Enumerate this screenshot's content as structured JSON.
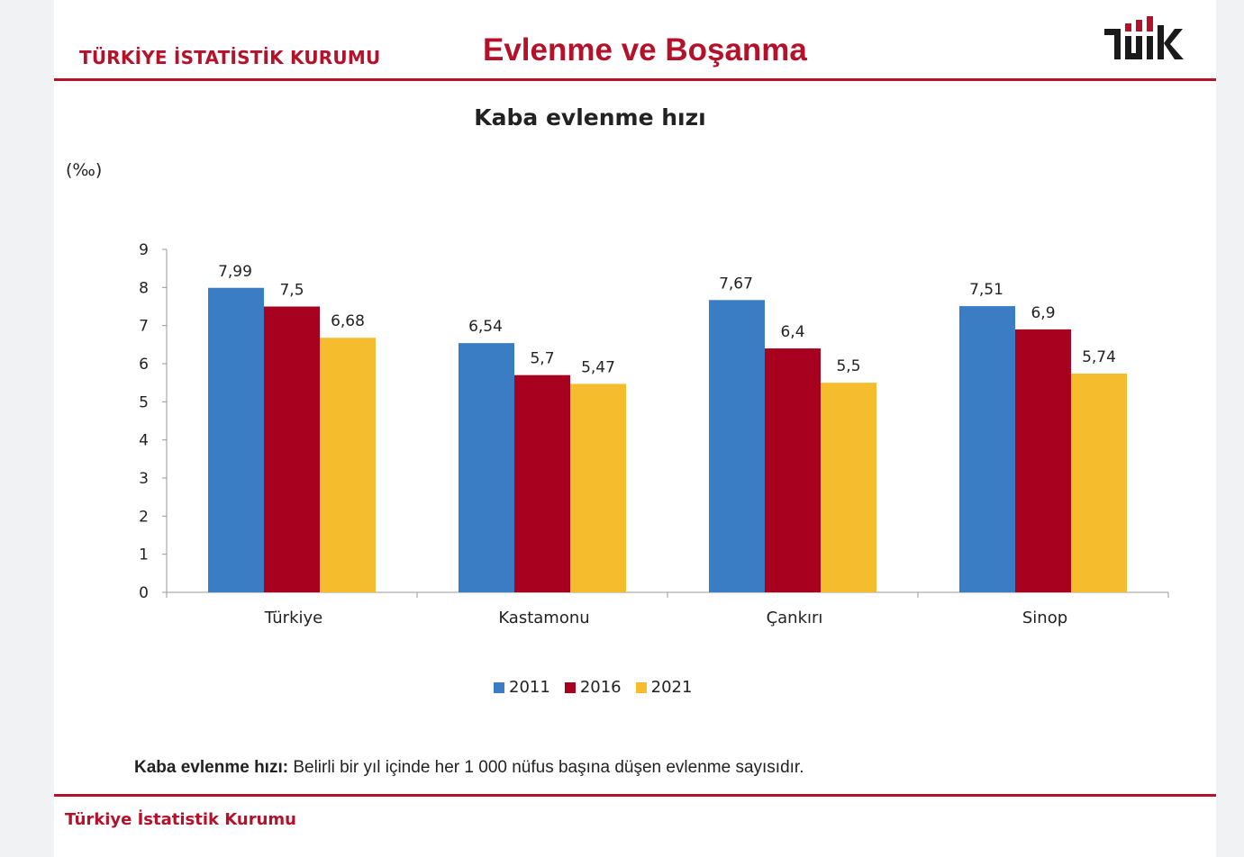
{
  "header": {
    "org_name": "TÜRKİYE İSTATİSTİK KURUMU",
    "title": "Evlenme ve Boşanma",
    "logo_text": "TÜİK"
  },
  "footer": {
    "org_name": "Türkiye İstatistik Kurumu"
  },
  "definition": {
    "term": "Kaba evlenme hızı:",
    "text": " Belirli bir yıl içinde her 1 000 nüfus başına düşen evlenme sayısıdır."
  },
  "colors": {
    "brand": "#b3122a",
    "series_2011": "#3b7dc4",
    "series_2016": "#a8001f",
    "series_2021": "#f5bd2e"
  },
  "chart_data": {
    "type": "bar",
    "title": "Kaba evlenme hızı",
    "ylabel": "(‰)",
    "xlabel": "",
    "ylim": [
      0,
      9
    ],
    "yticks": [
      "0",
      "1",
      "2",
      "3",
      "4",
      "5",
      "6",
      "7",
      "8",
      "9"
    ],
    "categories": [
      "Türkiye",
      "Kastamonu",
      "Çankırı",
      "Sinop"
    ],
    "series": [
      {
        "name": "2011",
        "values": [
          7.99,
          6.54,
          7.67,
          7.51
        ],
        "labels": [
          "7,99",
          "6,54",
          "7,67",
          "7,51"
        ],
        "color": "#3b7dc4"
      },
      {
        "name": "2016",
        "values": [
          7.5,
          5.7,
          6.4,
          6.9
        ],
        "labels": [
          "7,5",
          "5,7",
          "6,4",
          "6,9"
        ],
        "color": "#a8001f"
      },
      {
        "name": "2021",
        "values": [
          6.68,
          5.47,
          5.5,
          5.74
        ],
        "labels": [
          "6,68",
          "5,47",
          "5,5",
          "5,74"
        ],
        "color": "#f5bd2e"
      }
    ],
    "legend_position": "bottom",
    "grid": false
  }
}
